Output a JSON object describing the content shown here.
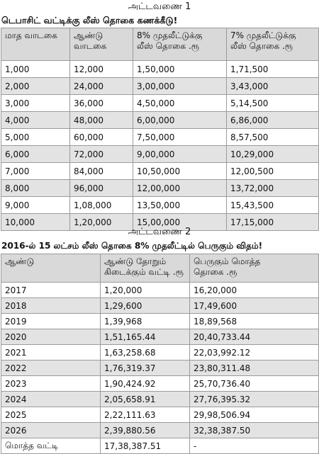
{
  "table1": {
    "caption": "அட்டவணை 1",
    "heading": "டெபாசிட் வட்டிக்கு லீஸ் தொகை கணக்கீடு!",
    "headers": [
      [
        "மாத வாடகை"
      ],
      [
        "ஆண்டு",
        "வாடகை"
      ],
      [
        "8% முதலீட்டுக்கு",
        "லீஸ் தொகை .ரூ"
      ],
      [
        "7% முதலீட்டுக்கு",
        "லீஸ் தொகை .ரூ"
      ]
    ],
    "rows": [
      [
        "1,000",
        "12,000",
        "1,50,000",
        "1,71,500"
      ],
      [
        "2,000",
        "24,000",
        "3,00,000",
        "3,43,000"
      ],
      [
        "3,000",
        "36,000",
        "4,50,000",
        "5,14,500"
      ],
      [
        "4,000",
        "48,000",
        "6,00,000",
        "6,86,000"
      ],
      [
        "5,000",
        "60,000",
        "7,50,000",
        "8,57,500"
      ],
      [
        "6,000",
        "72,000",
        "9,00,000",
        "10,29,000"
      ],
      [
        "7,000",
        "84,000",
        "10,50,000",
        "12,00,500"
      ],
      [
        "8,000",
        "96,000",
        "12,00,000",
        "13,72,000"
      ],
      [
        "9,000",
        "1,08,000",
        "13,50,000",
        "15,43,500"
      ],
      [
        "10,000",
        "1,20,000",
        "15,00,000",
        "17,15,000"
      ]
    ]
  },
  "table2": {
    "caption": "அட்டவணை 2",
    "heading": "2016-ல் 15 லட்சம் லீஸ் தொகை 8% முதலீட்டில் பெருகும் விதம்!",
    "headers": [
      [
        "ஆண்டு"
      ],
      [
        "ஆண்டு தோறும்",
        "கிடைக்கும் வட்டி .ரூ"
      ],
      [
        "பெருகும் மொத்த",
        "தொகை .ரூ"
      ]
    ],
    "rows": [
      [
        "2017",
        "1,20,000",
        "16,20,000"
      ],
      [
        "2018",
        "1,29,600",
        "17,49,600"
      ],
      [
        "2019",
        "1,39,968",
        "18,89,568"
      ],
      [
        "2020",
        "1,51,165.44",
        "20,40,733.44"
      ],
      [
        "2021",
        "1,63,258.68",
        "22,03,992.12"
      ],
      [
        "2022",
        "1,76,319.37",
        "23,80,311.48"
      ],
      [
        "2023",
        "1,90,424.92",
        "25,70,736.40"
      ],
      [
        "2024",
        "2,05,658.91",
        "27,76,395.32"
      ],
      [
        "2025",
        "2,22,111.63",
        "29,98,506.94"
      ],
      [
        "2026",
        "2,39,880.56",
        "32,38,387.50"
      ],
      [
        "மொத்த வட்டி",
        "17,38,387.51",
        "-"
      ]
    ]
  }
}
